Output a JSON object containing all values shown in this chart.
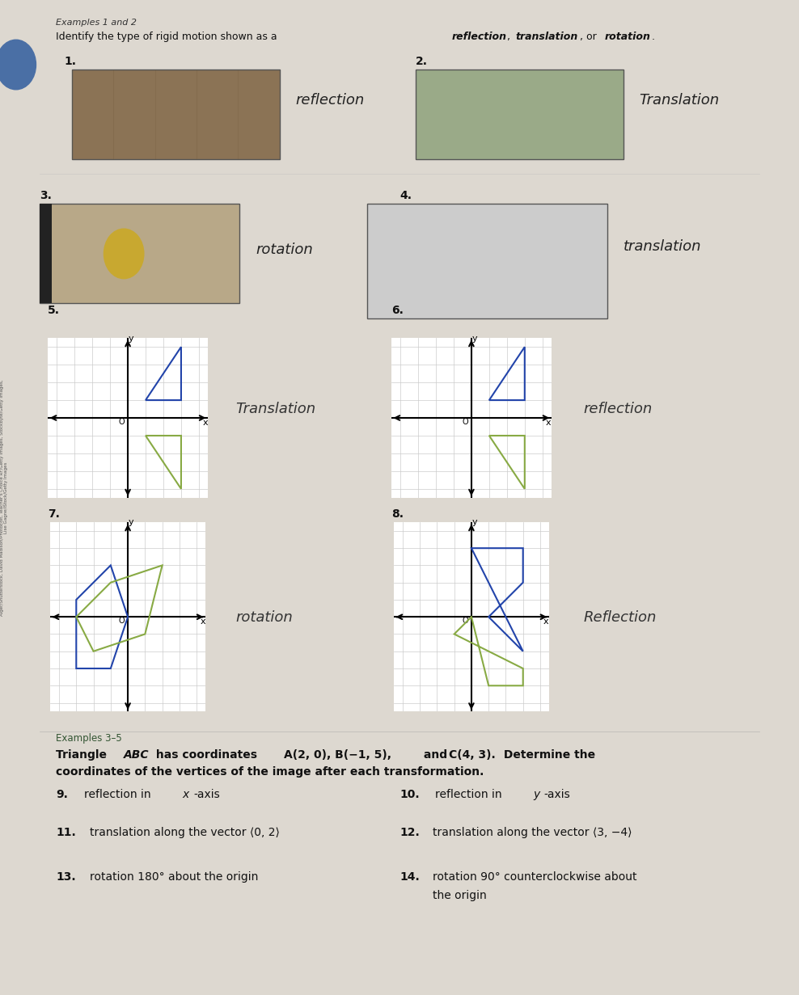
{
  "bg_color": "#f0ede8",
  "page_bg": "#e8e4de",
  "title_text": "Identify the type of rigid motion shown as a ​reflection, translation, or rotation.",
  "header_text": "Examples 1 and 2",
  "examples_35_label": "Examples 3–5",
  "bold_text": "Triangle ABC has coordinates A(2, 0), B(−1, 5), and C(4, 3). Determine the\ncoordinates of the vertices of the image after each transformation.",
  "problems": [
    {
      "num": "9.",
      "text": "reflection in x-axis"
    },
    {
      "num": "10.",
      "text": "reflection in y-axis"
    },
    {
      "num": "11.",
      "text": "translation along the vector ⟨0, 2⟩"
    },
    {
      "num": "12.",
      "text": "translation along the vector ⟨3, −4⟩"
    },
    {
      "num": "13.",
      "text": "rotation 180° about the origin"
    },
    {
      "num": "14.",
      "text": "rotation 90° counterclockwise about\nthe origin"
    }
  ],
  "grid_items": [
    {
      "num": "5.",
      "answer": "Translation",
      "answer_handwritten": true
    },
    {
      "num": "6.",
      "answer": "reflection",
      "answer_handwritten": true
    },
    {
      "num": "7.",
      "answer": "rotation",
      "answer_handwritten": true
    },
    {
      "num": "8.",
      "answer": "Reflection",
      "answer_handwritten": true
    }
  ],
  "photo_items": [
    {
      "num": "1.",
      "answer": "reflection"
    },
    {
      "num": "2.",
      "answer": "Translation"
    },
    {
      "num": "3.",
      "answer": "rotation"
    },
    {
      "num": "4.",
      "answer": "translation"
    }
  ]
}
